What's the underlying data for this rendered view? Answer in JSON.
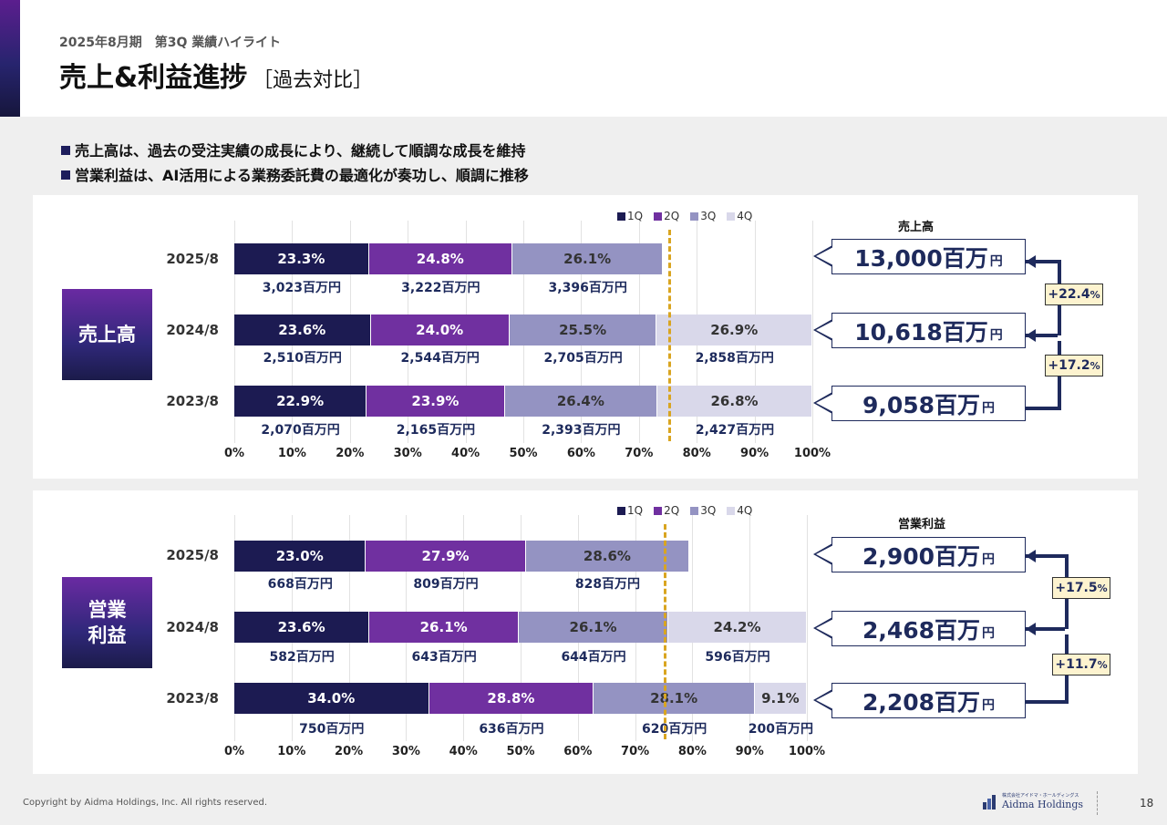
{
  "header": {
    "subtitle": "2025年8月期　第3Q 業績ハイライト",
    "title": "売上&利益進捗",
    "title_bracket": "［過去対比］"
  },
  "bullets": [
    "売上高は、過去の受注実績の成長により、継続して順調な成長を維持",
    "営業利益は、AI活用による業務委託費の最適化が奏功し、順調に推移"
  ],
  "colors": {
    "q1": "#1c1b52",
    "q2": "#7030a0",
    "q3": "#9493c2",
    "q4": "#d9d8ea",
    "dashed_line": "#d9a520",
    "accent_navy": "#1e2a5c"
  },
  "footer": {
    "copyright": "Copyright by Aidma Holdings, Inc. All rights reserved.",
    "logo_small": "株式会社アイドマ・ホールディングス",
    "logo": "Aidma Holdings",
    "page": "18"
  },
  "chart_data": [
    {
      "type": "bar",
      "stacked": "100%",
      "orientation": "horizontal",
      "panel_label": "売上高",
      "legend": [
        "1Q",
        "2Q",
        "3Q",
        "4Q"
      ],
      "legend_placement": "top-center",
      "categories": [
        "2025/8",
        "2024/8",
        "2023/8"
      ],
      "x_ticks": [
        "0%",
        "10%",
        "20%",
        "30%",
        "40%",
        "50%",
        "60%",
        "70%",
        "80%",
        "90%",
        "100%"
      ],
      "xlim": [
        0,
        100
      ],
      "reference_line_pct": 75,
      "series": [
        {
          "name": "1Q",
          "values": [
            23.3,
            23.6,
            22.9
          ],
          "labels": [
            "23.3%",
            "23.6%",
            "22.9%"
          ],
          "amounts": [
            "3,023百万円",
            "2,510百万円",
            "2,070百万円"
          ]
        },
        {
          "name": "2Q",
          "values": [
            24.8,
            24.0,
            23.9
          ],
          "labels": [
            "24.8%",
            "24.0%",
            "23.9%"
          ],
          "amounts": [
            "3,222百万円",
            "2,544百万円",
            "2,165百万円"
          ]
        },
        {
          "name": "3Q",
          "values": [
            26.1,
            25.5,
            26.4
          ],
          "labels": [
            "26.1%",
            "25.5%",
            "26.4%"
          ],
          "amounts": [
            "3,396百万円",
            "2,705百万円",
            "2,393百万円"
          ]
        },
        {
          "name": "4Q",
          "values": [
            0,
            26.9,
            26.8
          ],
          "labels": [
            "",
            "26.9%",
            "26.8%"
          ],
          "amounts": [
            "",
            "2,858百万円",
            "2,427百万円"
          ]
        }
      ],
      "totals_header": "売上高",
      "totals": [
        {
          "value": "13,000百万",
          "unit": "円"
        },
        {
          "value": "10,618百万",
          "unit": "円"
        },
        {
          "value": "9,058百万",
          "unit": "円"
        }
      ],
      "growth": [
        {
          "value": "+22.4",
          "unit": "%"
        },
        {
          "value": "+17.2",
          "unit": "%"
        }
      ]
    },
    {
      "type": "bar",
      "stacked": "100%",
      "orientation": "horizontal",
      "panel_label": "営業\n利益",
      "legend": [
        "1Q",
        "2Q",
        "3Q",
        "4Q"
      ],
      "legend_placement": "top-center",
      "categories": [
        "2025/8",
        "2024/8",
        "2023/8"
      ],
      "x_ticks": [
        "0%",
        "10%",
        "20%",
        "30%",
        "40%",
        "50%",
        "60%",
        "70%",
        "80%",
        "90%",
        "100%"
      ],
      "xlim": [
        0,
        100
      ],
      "reference_line_pct": 75,
      "series": [
        {
          "name": "1Q",
          "values": [
            23.0,
            23.6,
            34.0
          ],
          "labels": [
            "23.0%",
            "23.6%",
            "34.0%"
          ],
          "amounts": [
            "668百万円",
            "582百万円",
            "750百万円"
          ]
        },
        {
          "name": "2Q",
          "values": [
            27.9,
            26.1,
            28.8
          ],
          "labels": [
            "27.9%",
            "26.1%",
            "28.8%"
          ],
          "amounts": [
            "809百万円",
            "643百万円",
            "636百万円"
          ]
        },
        {
          "name": "3Q",
          "values": [
            28.6,
            26.1,
            28.1
          ],
          "labels": [
            "28.6%",
            "26.1%",
            "28.1%"
          ],
          "amounts": [
            "828百万円",
            "644百万円",
            "620百万円"
          ]
        },
        {
          "name": "4Q",
          "values": [
            0,
            24.2,
            9.1
          ],
          "labels": [
            "",
            "24.2%",
            "9.1%"
          ],
          "amounts": [
            "",
            "596百万円",
            "200百万円"
          ]
        }
      ],
      "totals_header": "営業利益",
      "totals": [
        {
          "value": "2,900百万",
          "unit": "円"
        },
        {
          "value": "2,468百万",
          "unit": "円"
        },
        {
          "value": "2,208百万",
          "unit": "円"
        }
      ],
      "growth": [
        {
          "value": "+17.5",
          "unit": "%"
        },
        {
          "value": "+11.7",
          "unit": "%"
        }
      ]
    }
  ]
}
